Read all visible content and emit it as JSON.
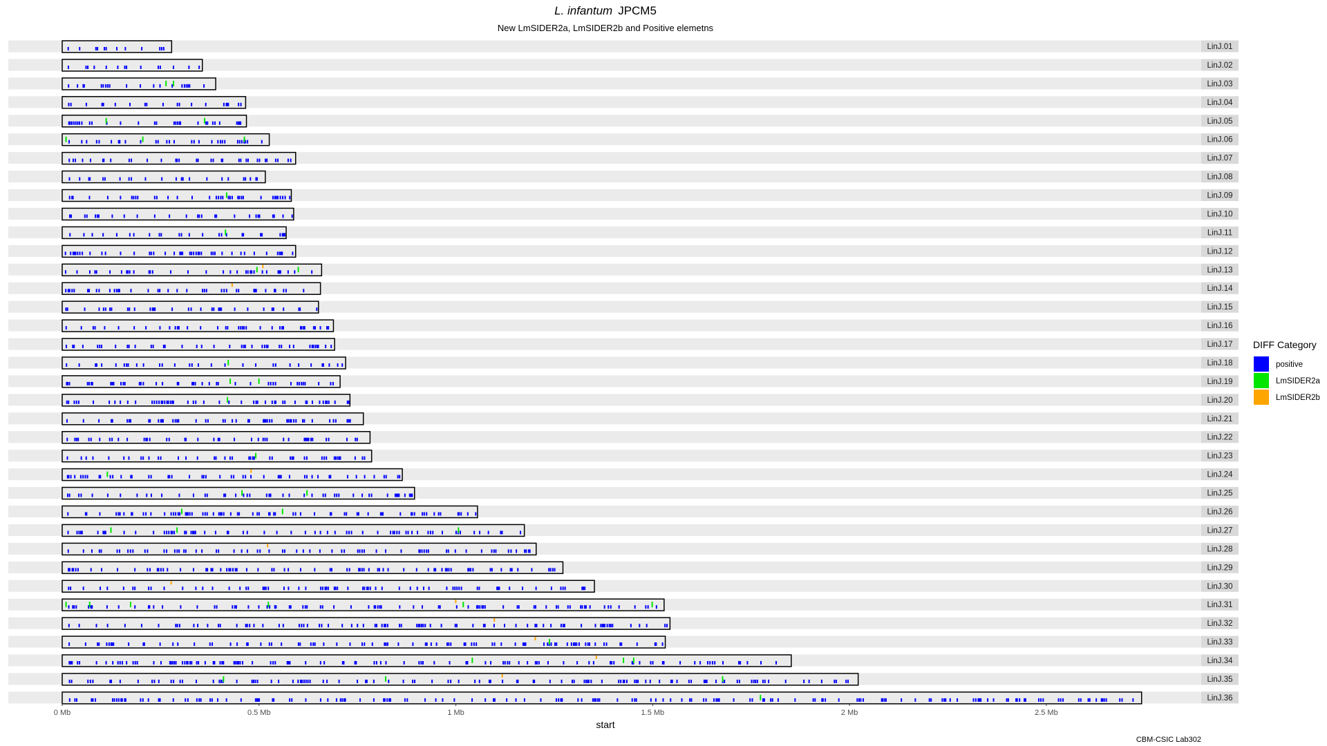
{
  "chart_data": {
    "type": "karyotype",
    "title_italic": "L. infantum",
    "title_rest": "JPCM5",
    "subtitle": "New LmSIDER2a, LmSIDER2b and Positive elemetns",
    "xlabel": "start",
    "caption": "CBM-CSIC Lab302",
    "xlim": [
      0,
      2760000
    ],
    "x_ticks": [
      {
        "value": 0,
        "label": "0 Mb"
      },
      {
        "value": 500000,
        "label": "0.5 Mb"
      },
      {
        "value": 1000000,
        "label": "1 Mb"
      },
      {
        "value": 1500000,
        "label": "1.5 Mb"
      },
      {
        "value": 2000000,
        "label": "2 Mb"
      },
      {
        "value": 2500000,
        "label": "2.5 Mb"
      }
    ],
    "legend": {
      "title": "DIFF Category",
      "entries": [
        {
          "name": "positive",
          "color": "#0000ff"
        },
        {
          "name": "LmSIDER2a",
          "color": "#00e600"
        },
        {
          "name": "LmSIDER2b",
          "color": "#ffa500"
        }
      ]
    },
    "chromosomes": [
      {
        "name": "LinJ.01",
        "length": 278000,
        "lmsider2a": [],
        "lmsider2b": []
      },
      {
        "name": "LinJ.02",
        "length": 356000,
        "lmsider2a": [],
        "lmsider2b": []
      },
      {
        "name": "LinJ.03",
        "length": 390000,
        "lmsider2a": [
          262000,
          281000
        ],
        "lmsider2b": []
      },
      {
        "name": "LinJ.04",
        "length": 466000,
        "lmsider2a": [],
        "lmsider2b": []
      },
      {
        "name": "LinJ.05",
        "length": 468000,
        "lmsider2a": [
          110000,
          360000
        ],
        "lmsider2b": []
      },
      {
        "name": "LinJ.06",
        "length": 526000,
        "lmsider2a": [
          8000,
          203000,
          461000
        ],
        "lmsider2b": []
      },
      {
        "name": "LinJ.07",
        "length": 593000,
        "lmsider2a": [],
        "lmsider2b": []
      },
      {
        "name": "LinJ.08",
        "length": 516000,
        "lmsider2a": [],
        "lmsider2b": []
      },
      {
        "name": "LinJ.09",
        "length": 582000,
        "lmsider2a": [
          416000
        ],
        "lmsider2b": []
      },
      {
        "name": "LinJ.10",
        "length": 588000,
        "lmsider2a": [],
        "lmsider2b": []
      },
      {
        "name": "LinJ.11",
        "length": 569000,
        "lmsider2a": [
          413000
        ],
        "lmsider2b": []
      },
      {
        "name": "LinJ.12",
        "length": 593000,
        "lmsider2a": [],
        "lmsider2b": []
      },
      {
        "name": "LinJ.13",
        "length": 659000,
        "lmsider2a": [
          493000,
          598000
        ],
        "lmsider2b": [
          508000
        ]
      },
      {
        "name": "LinJ.14",
        "length": 656000,
        "lmsider2a": [],
        "lmsider2b": [
          430000
        ]
      },
      {
        "name": "LinJ.15",
        "length": 651000,
        "lmsider2a": [],
        "lmsider2b": []
      },
      {
        "name": "LinJ.16",
        "length": 689000,
        "lmsider2a": [],
        "lmsider2b": []
      },
      {
        "name": "LinJ.17",
        "length": 692000,
        "lmsider2a": [],
        "lmsider2b": []
      },
      {
        "name": "LinJ.18",
        "length": 720000,
        "lmsider2a": [
          420000
        ],
        "lmsider2b": []
      },
      {
        "name": "LinJ.19",
        "length": 706000,
        "lmsider2a": [
          425000,
          498000
        ],
        "lmsider2b": []
      },
      {
        "name": "LinJ.20",
        "length": 731000,
        "lmsider2a": [
          418000
        ],
        "lmsider2b": []
      },
      {
        "name": "LinJ.21",
        "length": 765000,
        "lmsider2a": [],
        "lmsider2b": []
      },
      {
        "name": "LinJ.22",
        "length": 782000,
        "lmsider2a": [],
        "lmsider2b": []
      },
      {
        "name": "LinJ.23",
        "length": 786000,
        "lmsider2a": [
          490000
        ],
        "lmsider2b": []
      },
      {
        "name": "LinJ.24",
        "length": 864000,
        "lmsider2a": [
          113000
        ],
        "lmsider2b": [
          478000
        ]
      },
      {
        "name": "LinJ.25",
        "length": 895000,
        "lmsider2a": [
          455000,
          620000
        ],
        "lmsider2b": []
      },
      {
        "name": "LinJ.26",
        "length": 1055000,
        "lmsider2a": [
          302000,
          558000
        ],
        "lmsider2b": []
      },
      {
        "name": "LinJ.27",
        "length": 1174000,
        "lmsider2a": [
          122000,
          290000,
          1005000
        ],
        "lmsider2b": []
      },
      {
        "name": "LinJ.28",
        "length": 1204000,
        "lmsider2a": [],
        "lmsider2b": [
          520000
        ]
      },
      {
        "name": "LinJ.29",
        "length": 1272000,
        "lmsider2a": [],
        "lmsider2b": []
      },
      {
        "name": "LinJ.30",
        "length": 1352000,
        "lmsider2a": [],
        "lmsider2b": [
          275000
        ]
      },
      {
        "name": "LinJ.31",
        "length": 1529000,
        "lmsider2a": [
          8000,
          68000,
          172000,
          522000,
          1017000,
          1497000
        ],
        "lmsider2b": [
          998000
        ]
      },
      {
        "name": "LinJ.32",
        "length": 1544000,
        "lmsider2a": [],
        "lmsider2b": [
          1096000
        ]
      },
      {
        "name": "LinJ.33",
        "length": 1532000,
        "lmsider2a": [
          1236000
        ],
        "lmsider2b": [
          1200000
        ]
      },
      {
        "name": "LinJ.34",
        "length": 1852000,
        "lmsider2a": [
          1040000,
          1424000,
          1450000
        ],
        "lmsider2b": [
          1355000
        ]
      },
      {
        "name": "LinJ.35",
        "length": 2022000,
        "lmsider2a": [
          408000,
          820000,
          1676000
        ],
        "lmsider2b": [
          1116000
        ]
      },
      {
        "name": "LinJ.36",
        "length": 2742000,
        "lmsider2a": [
          1772000
        ],
        "lmsider2b": []
      }
    ]
  }
}
